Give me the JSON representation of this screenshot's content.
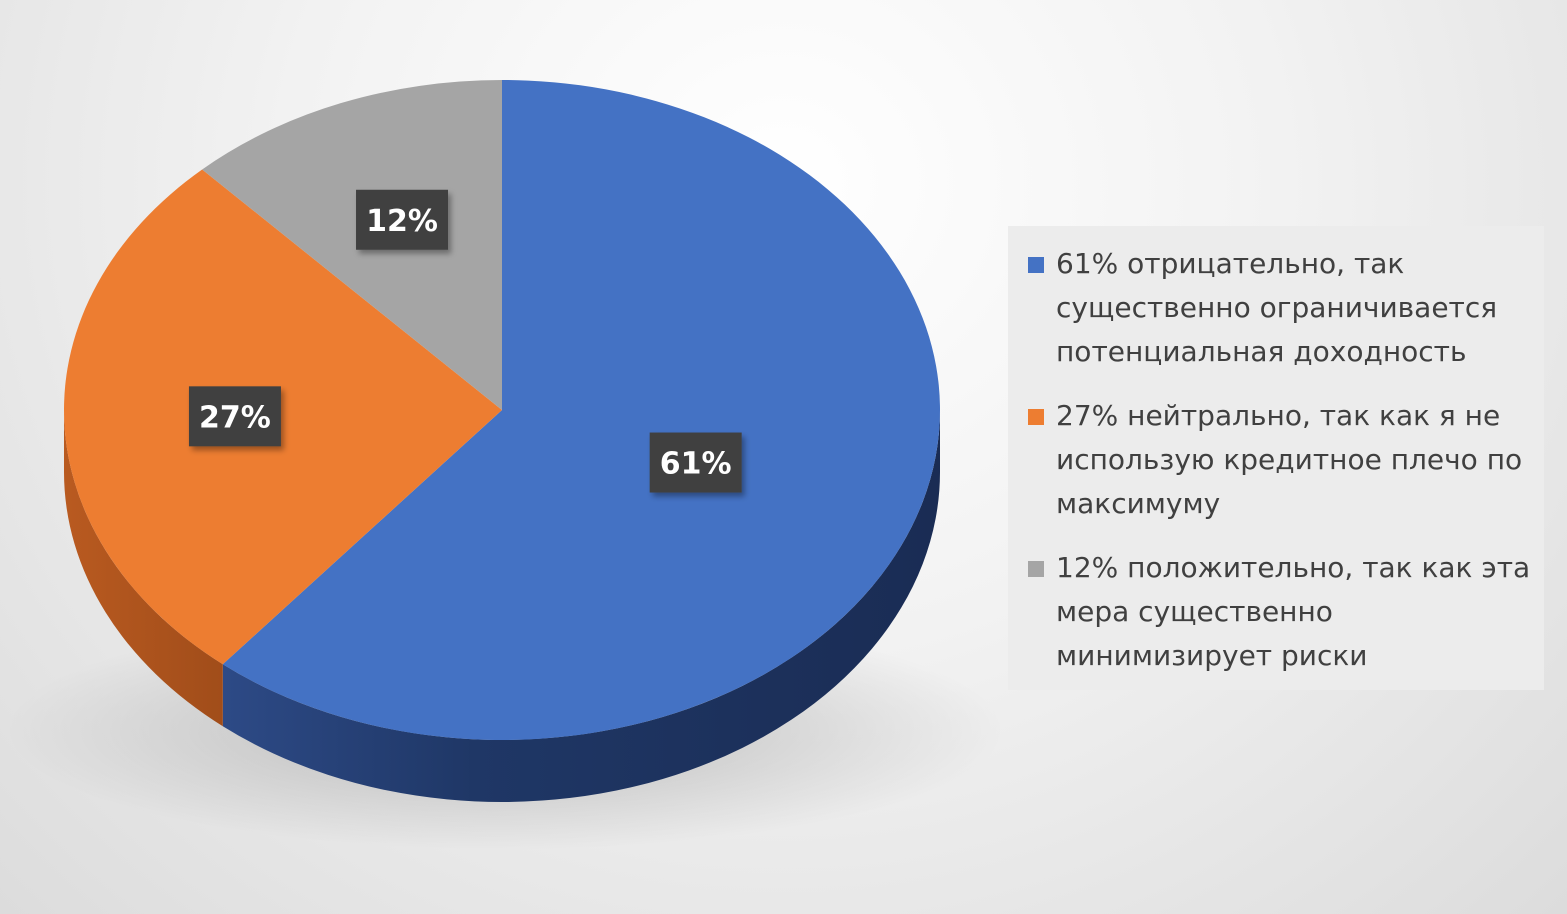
{
  "chart_data": {
    "type": "pie",
    "title": "",
    "categories": [
      "61% отрицательно, так существенно ограничивается потенциальная доходность",
      "27% нейтрально, так как я не использую кредитное плечо по максимуму",
      "12% положительно, так как эта мера существенно минимизирует риски"
    ],
    "values": [
      61,
      27,
      12
    ],
    "data_labels": [
      "61%",
      "27%",
      "12%"
    ],
    "colors": [
      "#4472c4",
      "#ed7d31",
      "#a5a5a5"
    ],
    "legend_position": "right",
    "style": "3d"
  }
}
